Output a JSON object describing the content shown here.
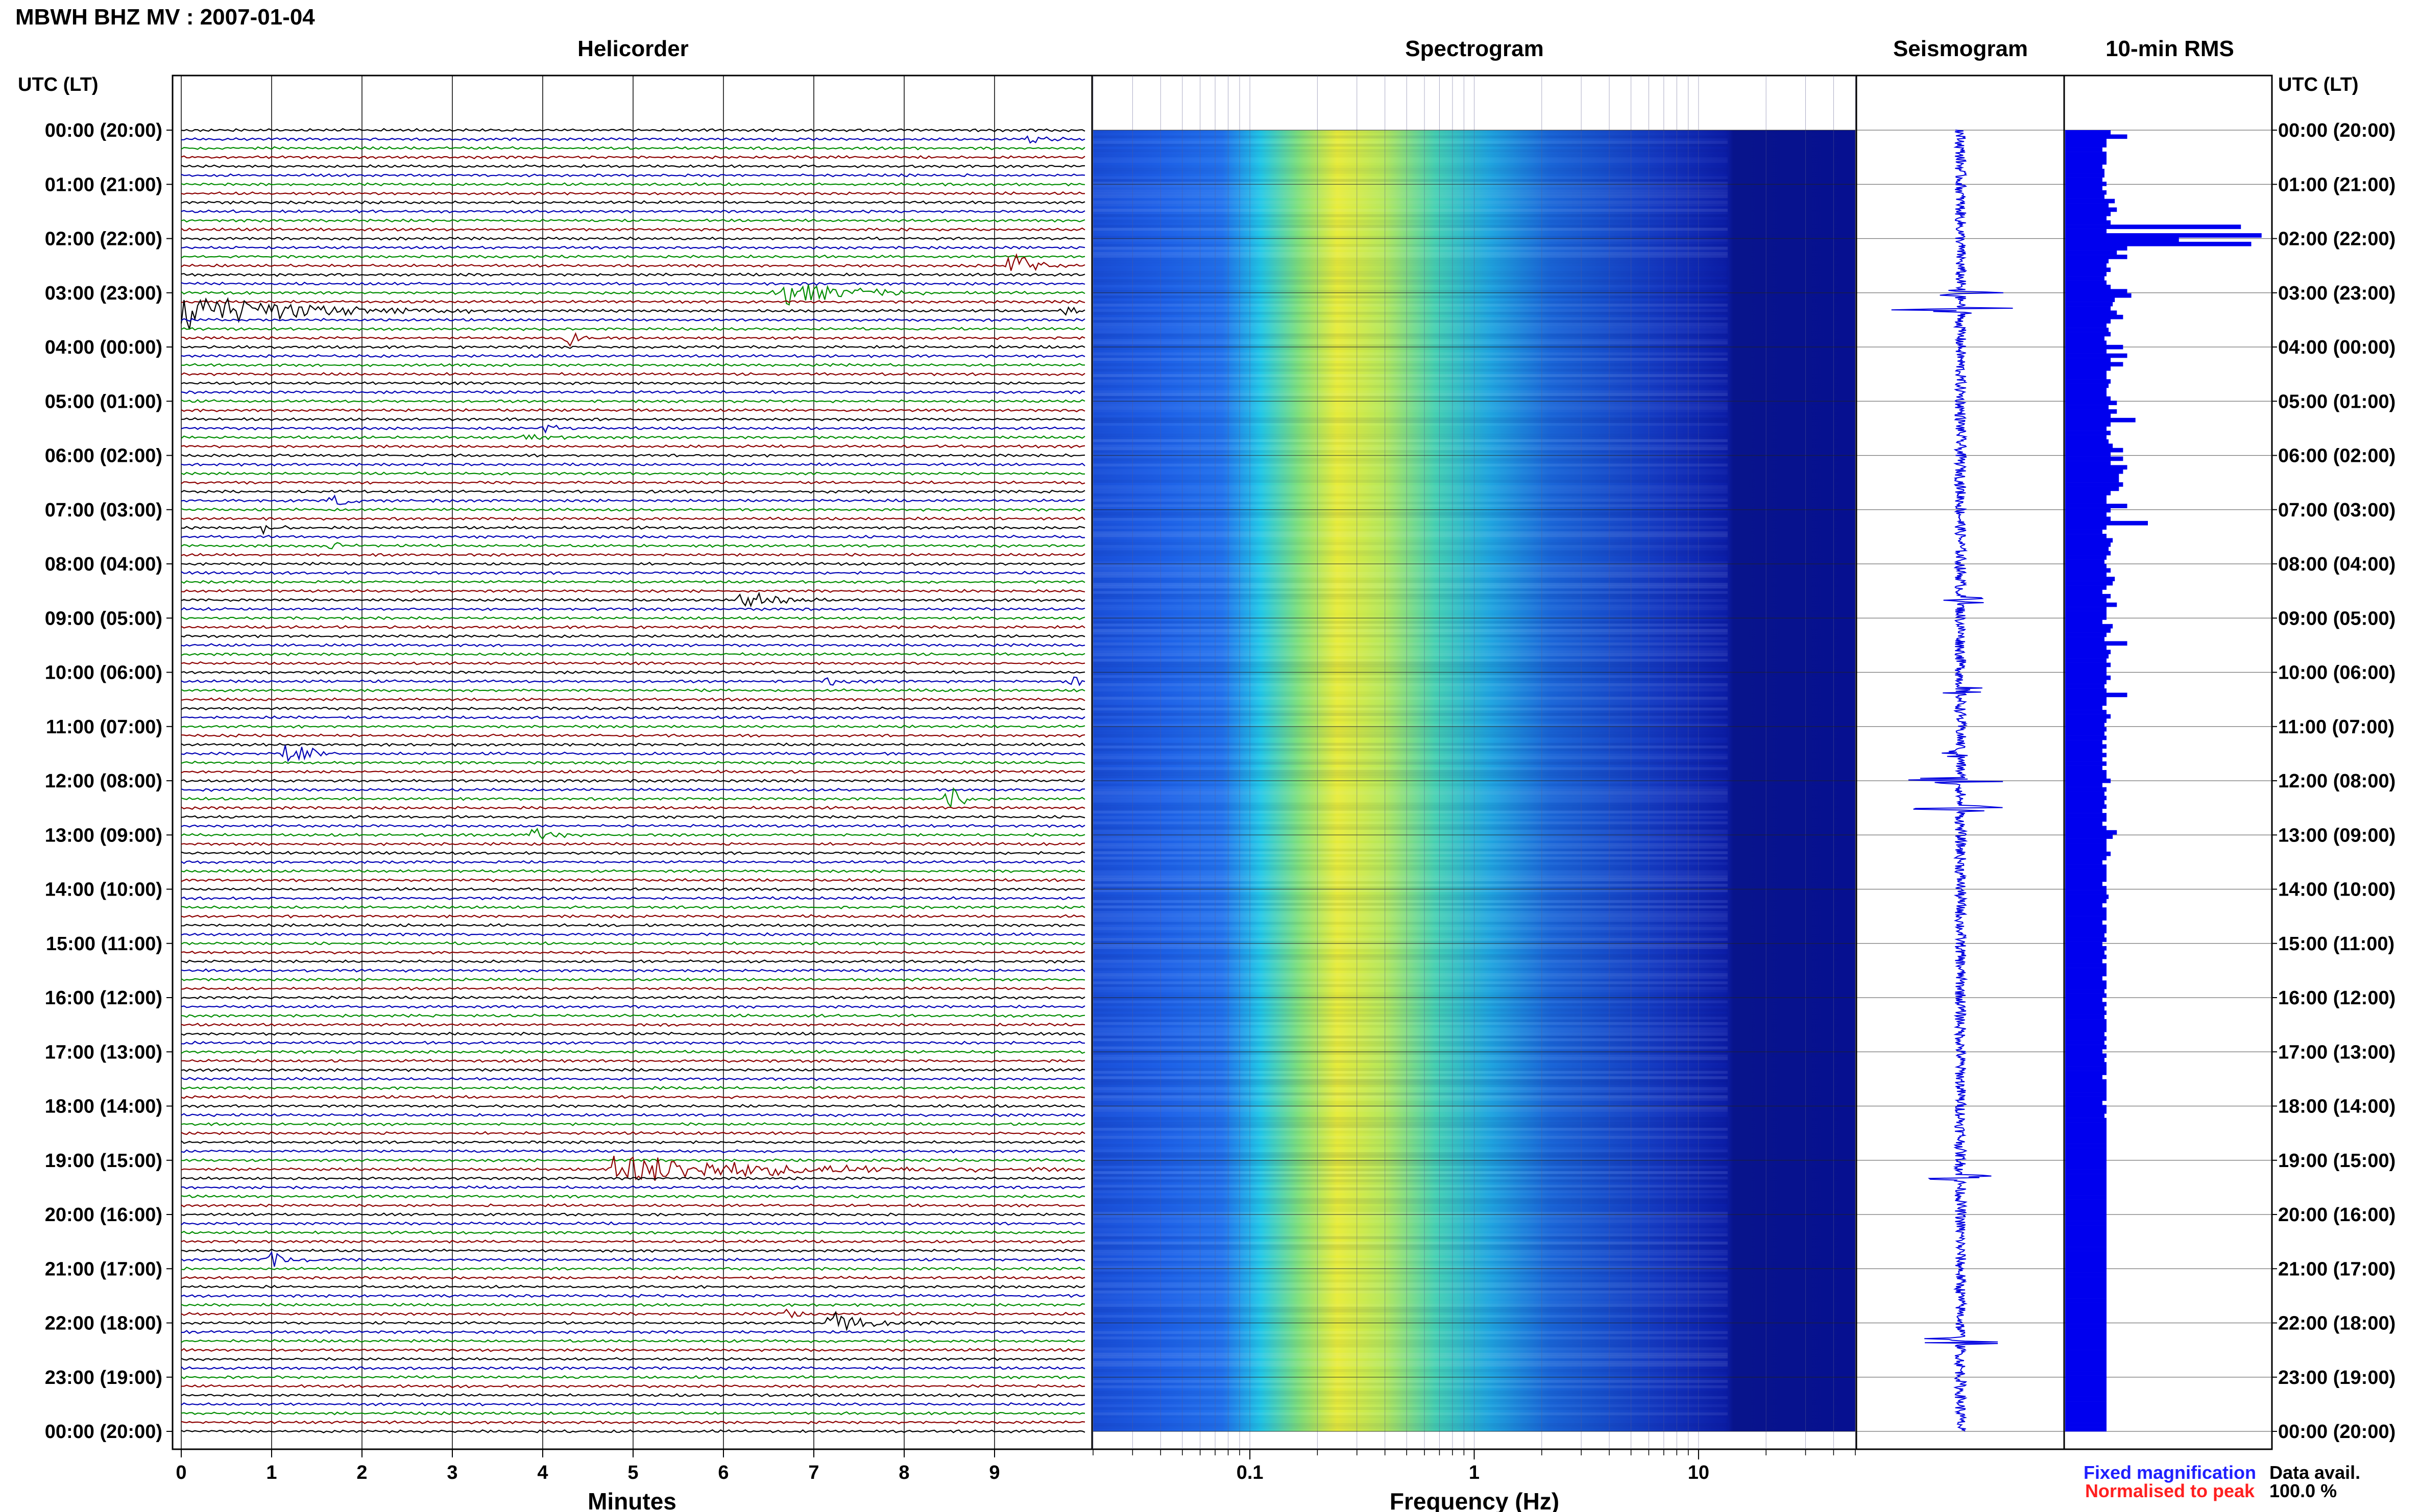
{
  "header": {
    "title": "MBWH BHZ MV : 2007-01-04"
  },
  "panels": {
    "helicorder": "Helicorder",
    "spectrogram": "Spectrogram",
    "seismogram": "Seismogram",
    "rms": "10-min RMS"
  },
  "axes": {
    "left_header": "UTC (LT)",
    "right_header": "UTC (LT)",
    "minutes_label": "Minutes",
    "frequency_label": "Frequency (Hz)",
    "minute_ticks": [
      "0",
      "1",
      "2",
      "3",
      "4",
      "5",
      "6",
      "7",
      "8",
      "9"
    ],
    "freq_ticks": [
      "0.1",
      "1",
      "10"
    ],
    "time_labels": [
      "00:00 (20:00)",
      "01:00 (21:00)",
      "02:00 (22:00)",
      "03:00 (23:00)",
      "04:00 (00:00)",
      "05:00 (01:00)",
      "06:00 (02:00)",
      "07:00 (03:00)",
      "08:00 (04:00)",
      "09:00 (05:00)",
      "10:00 (06:00)",
      "11:00 (07:00)",
      "12:00 (08:00)",
      "13:00 (09:00)",
      "14:00 (10:00)",
      "15:00 (11:00)",
      "16:00 (12:00)",
      "17:00 (13:00)",
      "18:00 (14:00)",
      "19:00 (15:00)",
      "20:00 (16:00)",
      "21:00 (17:00)",
      "22:00 (18:00)",
      "23:00 (19:00)",
      "00:00 (20:00)"
    ]
  },
  "legend": {
    "fixed": "Fixed magnification",
    "normalised": "Normalised to peak",
    "avail_label": "Data avail.",
    "avail_value": "100.0 %"
  },
  "colors": {
    "trace_cycle": [
      "#000000",
      "#0000b4",
      "#008c00",
      "#8c0000"
    ],
    "bar_blue": "#0000ee",
    "fixed_text": "#2020ff",
    "normalised_text": "#ff2020",
    "spectro_low": "#00008c",
    "spectro_high": "#f0f000"
  },
  "chart_data": [
    {
      "type": "line",
      "title": "Helicorder",
      "xlabel": "Minutes",
      "xlim": [
        0,
        10
      ],
      "rows_per_hour": 6,
      "ylim_hours": [
        0,
        24
      ],
      "events": [
        {
          "hour": 0.17,
          "minute": 9.4,
          "dur": 0.5,
          "amp": 0.6
        },
        {
          "hour": 2.5,
          "minute": 9.2,
          "dur": 0.6,
          "amp": 1.6
        },
        {
          "hour": 3.0,
          "minute": 6.6,
          "dur": 2.0,
          "amp": 1.4
        },
        {
          "hour": 3.33,
          "minute": 0.0,
          "dur": 3.5,
          "amp": 1.8
        },
        {
          "hour": 3.33,
          "minute": 9.8,
          "dur": 0.2,
          "amp": 1.4
        },
        {
          "hour": 3.83,
          "minute": 4.3,
          "dur": 0.5,
          "amp": 0.7
        },
        {
          "hour": 5.5,
          "minute": 4.0,
          "dur": 0.5,
          "amp": 0.6
        },
        {
          "hour": 5.67,
          "minute": 3.8,
          "dur": 0.6,
          "amp": 0.5
        },
        {
          "hour": 6.83,
          "minute": 1.7,
          "dur": 0.4,
          "amp": 0.7
        },
        {
          "hour": 7.33,
          "minute": 0.9,
          "dur": 0.4,
          "amp": 0.7
        },
        {
          "hour": 7.67,
          "minute": 1.7,
          "dur": 0.5,
          "amp": 0.6
        },
        {
          "hour": 8.67,
          "minute": 6.2,
          "dur": 1.2,
          "amp": 0.9
        },
        {
          "hour": 10.17,
          "minute": 7.1,
          "dur": 0.6,
          "amp": 0.5
        },
        {
          "hour": 10.17,
          "minute": 9.9,
          "dur": 0.1,
          "amp": 0.9
        },
        {
          "hour": 11.5,
          "minute": 1.2,
          "dur": 0.6,
          "amp": 1.7
        },
        {
          "hour": 12.33,
          "minute": 8.5,
          "dur": 0.5,
          "amp": 1.3
        },
        {
          "hour": 13.0,
          "minute": 3.9,
          "dur": 0.6,
          "amp": 0.8
        },
        {
          "hour": 19.17,
          "minute": 4.8,
          "dur": 5.0,
          "amp": 1.5
        },
        {
          "hour": 20.83,
          "minute": 1.0,
          "dur": 0.8,
          "amp": 0.7
        },
        {
          "hour": 21.83,
          "minute": 6.7,
          "dur": 0.5,
          "amp": 0.5
        },
        {
          "hour": 22.0,
          "minute": 7.2,
          "dur": 1.2,
          "amp": 1.0
        }
      ]
    },
    {
      "type": "heatmap",
      "title": "Spectrogram",
      "xlabel": "Frequency (Hz)",
      "xscale": "log",
      "xlim": [
        0.02,
        50
      ],
      "peak_frequency_hz": 0.25,
      "ylim_hours": [
        0,
        24
      ]
    },
    {
      "type": "line",
      "title": "Seismogram",
      "ylim_hours": [
        0,
        24
      ],
      "spikes": [
        {
          "hour": 3.0,
          "amp": 0.6
        },
        {
          "hour": 3.33,
          "amp": 0.85
        },
        {
          "hour": 8.67,
          "amp": 0.3
        },
        {
          "hour": 10.33,
          "amp": 0.3
        },
        {
          "hour": 11.5,
          "amp": 0.4
        },
        {
          "hour": 12.0,
          "amp": 0.85
        },
        {
          "hour": 12.5,
          "amp": 0.6
        },
        {
          "hour": 19.33,
          "amp": 0.5
        },
        {
          "hour": 22.33,
          "amp": 0.55
        }
      ]
    },
    {
      "type": "bar",
      "title": "10-min RMS",
      "orientation": "horizontal",
      "xlim": [
        0,
        1
      ],
      "bin_minutes": 10,
      "values": [
        0.22,
        0.3,
        0.2,
        0.2,
        0.18,
        0.2,
        0.2,
        0.2,
        0.18,
        0.19,
        0.19,
        0.18,
        0.2,
        0.18,
        0.2,
        0.19,
        0.24,
        0.21,
        0.25,
        0.22,
        0.2,
        0.22,
        0.85,
        0.2,
        0.95,
        0.55,
        0.9,
        0.3,
        0.25,
        0.3,
        0.21,
        0.2,
        0.22,
        0.2,
        0.19,
        0.2,
        0.22,
        0.3,
        0.32,
        0.24,
        0.23,
        0.22,
        0.25,
        0.28,
        0.22,
        0.2,
        0.21,
        0.22,
        0.19,
        0.2,
        0.28,
        0.2,
        0.3,
        0.22,
        0.28,
        0.22,
        0.2,
        0.2,
        0.22,
        0.21,
        0.2,
        0.2,
        0.22,
        0.25,
        0.21,
        0.25,
        0.22,
        0.34,
        0.22,
        0.2,
        0.22,
        0.2,
        0.21,
        0.23,
        0.28,
        0.22,
        0.28,
        0.22,
        0.3,
        0.28,
        0.26,
        0.26,
        0.28,
        0.26,
        0.22,
        0.2,
        0.2,
        0.3,
        0.22,
        0.2,
        0.22,
        0.4,
        0.2,
        0.18,
        0.2,
        0.23,
        0.22,
        0.21,
        0.22,
        0.2,
        0.19,
        0.2,
        0.22,
        0.2,
        0.24,
        0.23,
        0.2,
        0.18,
        0.22,
        0.2,
        0.25,
        0.2,
        0.2,
        0.2,
        0.18,
        0.23,
        0.22,
        0.2,
        0.19,
        0.3,
        0.2,
        0.22,
        0.21,
        0.2,
        0.22,
        0.2,
        0.2,
        0.22,
        0.2,
        0.19,
        0.2,
        0.3,
        0.2,
        0.2,
        0.18,
        0.2,
        0.22,
        0.2,
        0.19,
        0.2,
        0.19,
        0.2,
        0.18,
        0.2,
        0.18,
        0.2,
        0.18,
        0.2,
        0.18,
        0.2,
        0.2,
        0.22,
        0.18,
        0.2,
        0.19,
        0.2,
        0.19,
        0.2,
        0.18,
        0.2,
        0.2,
        0.18,
        0.2,
        0.25,
        0.23,
        0.2,
        0.2,
        0.2,
        0.22,
        0.2,
        0.18,
        0.2,
        0.2,
        0.2,
        0.2,
        0.18,
        0.2,
        0.2,
        0.21,
        0.2,
        0.18,
        0.2,
        0.2,
        0.2,
        0.18,
        0.2,
        0.2,
        0.19,
        0.2,
        0.18,
        0.2,
        0.19,
        0.2,
        0.18,
        0.2,
        0.2,
        0.2,
        0.18,
        0.2,
        0.2,
        0.19,
        0.2,
        0.18,
        0.2,
        0.19,
        0.2,
        0.19,
        0.2,
        0.2,
        0.2,
        0.19,
        0.2,
        0.19,
        0.2,
        0.18,
        0.2,
        0.19,
        0.2,
        0.2,
        0.2,
        0.18,
        0.2,
        0.2,
        0.2,
        0.2,
        0.2,
        0.18,
        0.2,
        0.2,
        0.19,
        0.2,
        0.2,
        0.2,
        0.2,
        0.2,
        0.2,
        0.2,
        0.2,
        0.2,
        0.2,
        0.2,
        0.2,
        0.2,
        0.2,
        0.2,
        0.2,
        0.2,
        0.2,
        0.2,
        0.2,
        0.2,
        0.2,
        0.2,
        0.2,
        0.2,
        0.2,
        0.2,
        0.2,
        0.2,
        0.2,
        0.2,
        0.2,
        0.2,
        0.2,
        0.2,
        0.2,
        0.2,
        0.2,
        0.2,
        0.2,
        0.2,
        0.2,
        0.2,
        0.2,
        0.2,
        0.2,
        0.2,
        0.2,
        0.2,
        0.2,
        0.2,
        0.2,
        0.2,
        0.2,
        0.2,
        0.2,
        0.2,
        0.2,
        0.2,
        0.2,
        0.2,
        0.2,
        0.2,
        0.2,
        0.2,
        0.2,
        0.2,
        0.2,
        0.2,
        0.2,
        0.2,
        0.2,
        0.2
      ]
    }
  ]
}
